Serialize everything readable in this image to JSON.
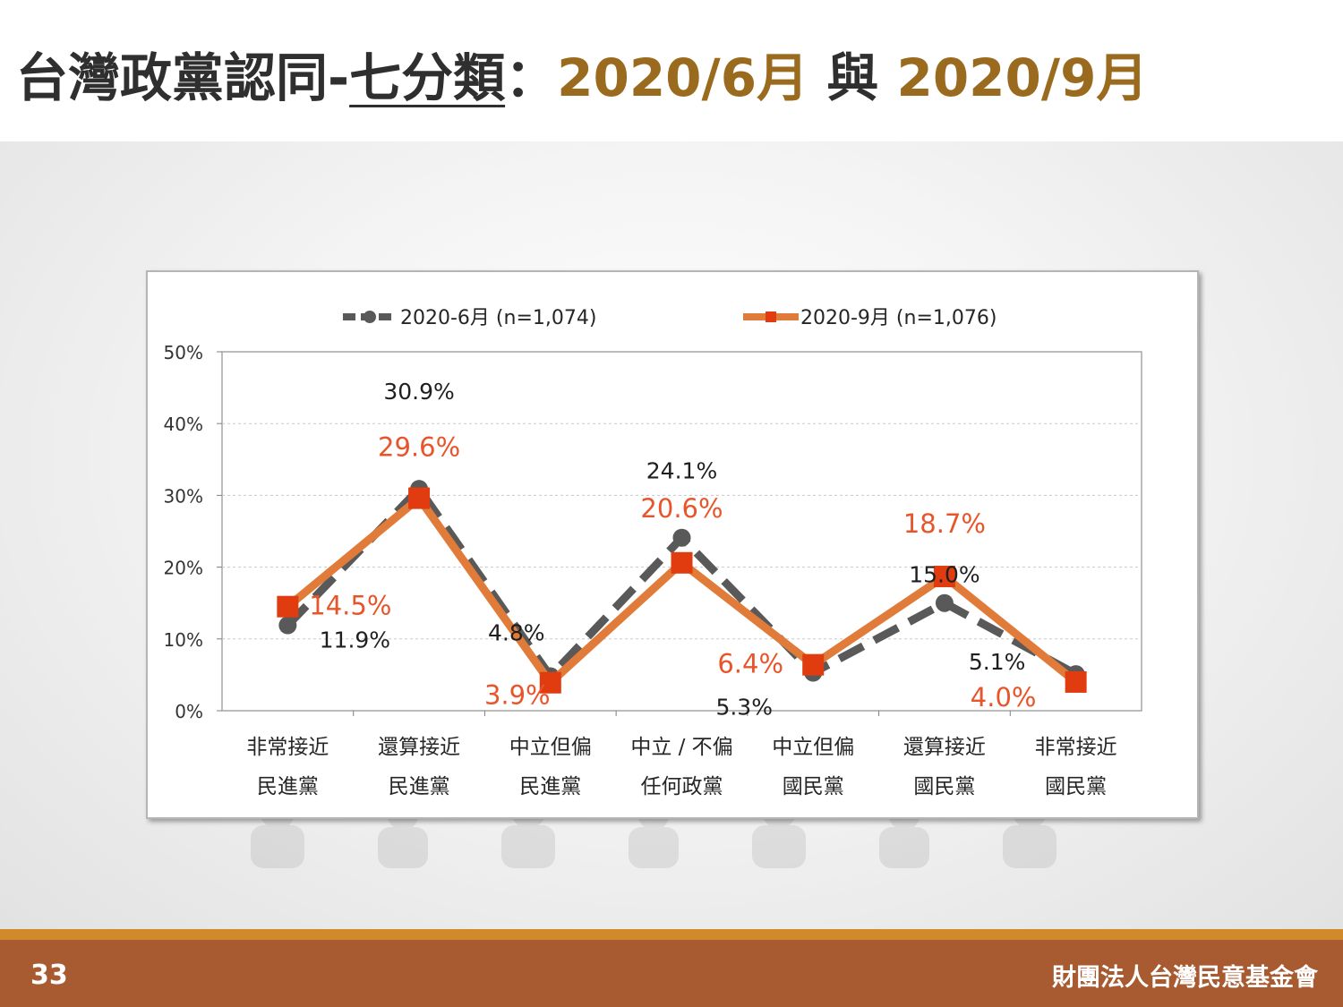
{
  "slide": {
    "title_main": "台灣政黨認同-",
    "title_underlined": "七分類",
    "title_colon": "：",
    "title_range_start": "2020/6月",
    "title_connector": " 與 ",
    "title_range_end": "2020/9月",
    "page_number": "33",
    "organization": "財團法人台灣民意基金會",
    "colors": {
      "accent": "#9a6a1e",
      "footer": "#a85a30",
      "footer_stripe": "#d08a2a"
    }
  },
  "chart_data": {
    "type": "line",
    "categories": [
      [
        "非常接近",
        "民進黨"
      ],
      [
        "還算接近",
        "民進黨"
      ],
      [
        "中立但偏",
        "民進黨"
      ],
      [
        "中立 / 不偏",
        "任何政黨"
      ],
      [
        "中立但偏",
        "國民黨"
      ],
      [
        "還算接近",
        "國民黨"
      ],
      [
        "非常接近",
        "國民黨"
      ]
    ],
    "y_tick_labels": [
      "0%",
      "10%",
      "20%",
      "30%",
      "40%",
      "50%"
    ],
    "ylim": [
      0,
      50
    ],
    "grid": true,
    "legend_position": "top",
    "series": [
      {
        "name": "2020-6月 (n=1,074)",
        "values": [
          11.9,
          30.9,
          4.8,
          24.1,
          5.3,
          15.0,
          5.1
        ],
        "labels": [
          "11.9%",
          "30.9%",
          "4.8%",
          "24.1%",
          "5.3%",
          "15.0%",
          "5.1%"
        ],
        "color": "#595959",
        "style": "dashed",
        "marker": "circle"
      },
      {
        "name": "2020-9月 (n=1,076)",
        "values": [
          14.5,
          29.6,
          3.9,
          20.6,
          6.4,
          18.7,
          4.0
        ],
        "labels": [
          "14.5%",
          "29.6%",
          "3.9%",
          "20.6%",
          "6.4%",
          "18.7%",
          "4.0%"
        ],
        "color": "#e07b39",
        "marker_color": "#e03c10",
        "label_color": "#e8552a",
        "style": "solid",
        "marker": "square"
      }
    ]
  }
}
